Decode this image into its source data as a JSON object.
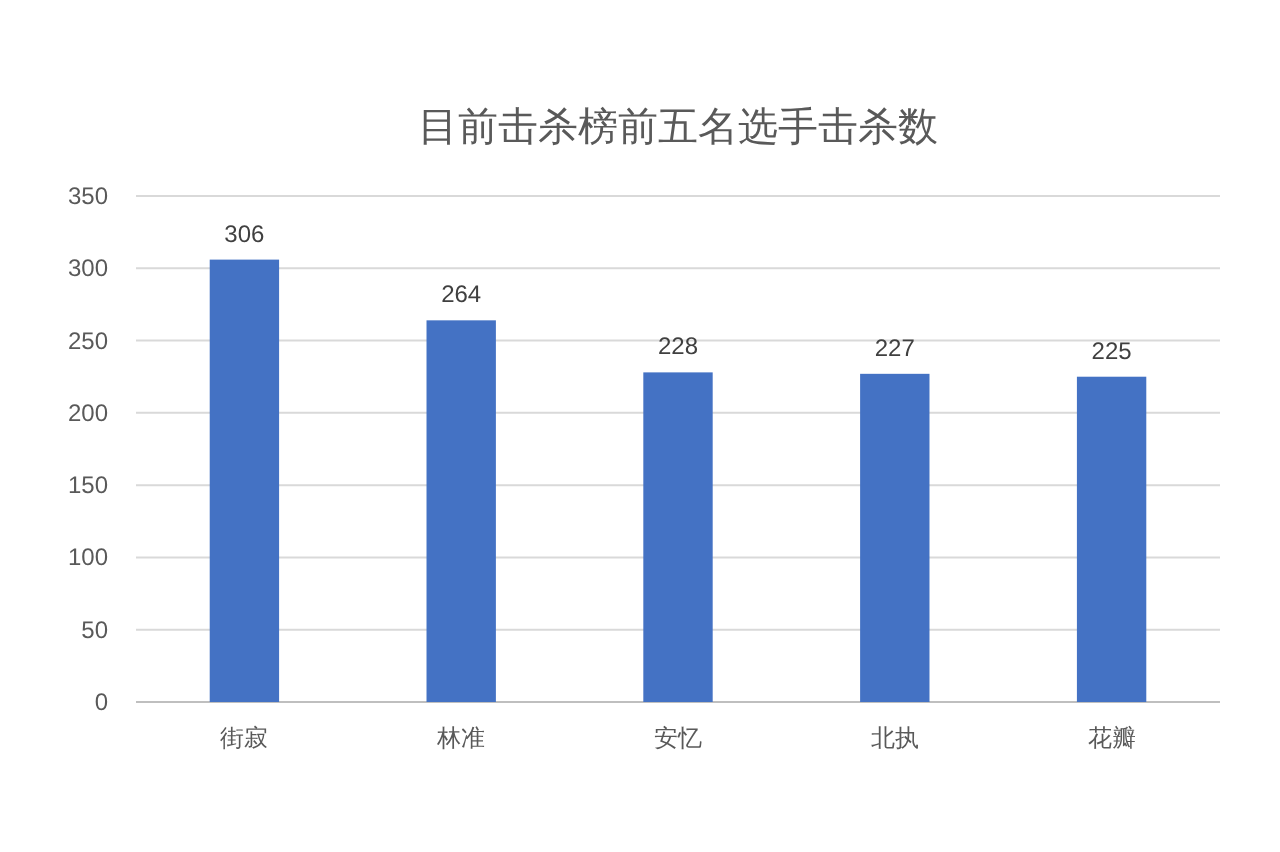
{
  "chart_data": {
    "type": "bar",
    "title": "目前击杀榜前五名选手击杀数",
    "categories": [
      "街寂",
      "林准",
      "安忆",
      "北执",
      "花瓣"
    ],
    "values": [
      306,
      264,
      228,
      227,
      225
    ],
    "color": "#4472c4",
    "ylim": [
      0,
      350
    ],
    "yticks": [
      0,
      50,
      100,
      150,
      200,
      250,
      300,
      350
    ],
    "grid": "y",
    "data_labels": true
  }
}
